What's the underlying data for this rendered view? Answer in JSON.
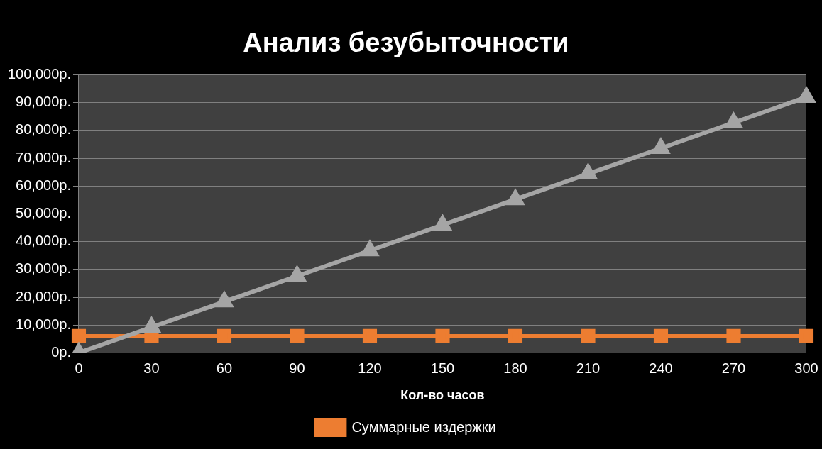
{
  "chart_data": {
    "type": "line",
    "title": "Анализ безубыточности",
    "xlabel": "Кол-во часов",
    "categories": [
      "0",
      "30",
      "60",
      "90",
      "120",
      "150",
      "180",
      "210",
      "240",
      "270",
      "300"
    ],
    "series": [
      {
        "color": "#a5a5a5",
        "marker": "triangle",
        "values": [
          0,
          9200,
          18400,
          27600,
          36800,
          46000,
          55200,
          64400,
          73600,
          82800,
          92000
        ]
      },
      {
        "name": "Суммарные издержки",
        "color": "#ed7d31",
        "marker": "square",
        "values": [
          6000,
          6000,
          6000,
          6000,
          6000,
          6000,
          6000,
          6000,
          6000,
          6000,
          6000
        ]
      }
    ],
    "ylim": [
      0,
      100000
    ],
    "yticks": [
      {
        "value": 0,
        "label": "0р."
      },
      {
        "value": 10000,
        "label": "10,000р."
      },
      {
        "value": 20000,
        "label": "20,000р."
      },
      {
        "value": 30000,
        "label": "30,000р."
      },
      {
        "value": 40000,
        "label": "40,000р."
      },
      {
        "value": 50000,
        "label": "50,000р."
      },
      {
        "value": 60000,
        "label": "60,000р."
      },
      {
        "value": 70000,
        "label": "70,000р."
      },
      {
        "value": 80000,
        "label": "80,000р."
      },
      {
        "value": 90000,
        "label": "90,000р."
      },
      {
        "value": 100000,
        "label": "100,000р."
      }
    ],
    "grid": "y",
    "legend": "bottom",
    "line_style": "solid"
  }
}
